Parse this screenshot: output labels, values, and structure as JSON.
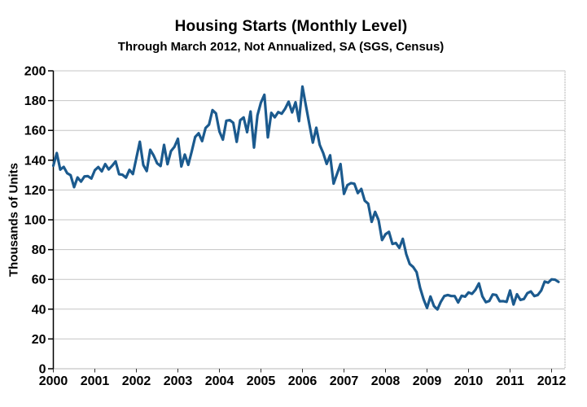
{
  "chart_data": {
    "type": "line",
    "title": "Housing Starts (Monthly Level)",
    "subtitle": "Through March 2012, Not Annualized, SA (SGS, Census)",
    "ylabel": "Thousands of Units",
    "xlabel": "",
    "ylim": [
      0,
      200
    ],
    "ytick_step": 20,
    "yticks": [
      0,
      20,
      40,
      60,
      80,
      100,
      120,
      140,
      160,
      180,
      200
    ],
    "xticks": [
      "2000",
      "2001",
      "2002",
      "2003",
      "2004",
      "2005",
      "2006",
      "2007",
      "2008",
      "2009",
      "2010",
      "2011",
      "2012"
    ],
    "grid": true,
    "legend": "none",
    "line_color": "#1B5A8E",
    "grid_color": "#8c8c8c",
    "axis_color": "#000000",
    "series": [
      {
        "name": "Housing starts, monthly level (thousands of units)",
        "start": "2000-01",
        "end": "2012-03",
        "frequency": "monthly",
        "values": [
          136.3,
          144.8,
          133.7,
          135.5,
          131.3,
          129.9,
          121.9,
          128.4,
          125.6,
          129.1,
          129.3,
          127.7,
          133.3,
          135.4,
          132.5,
          137.4,
          133.8,
          136.3,
          139.2,
          130.6,
          130.2,
          128.3,
          133.5,
          130.7,
          141.5,
          152.4,
          136.8,
          132.7,
          147.0,
          143.1,
          137.9,
          136.1,
          150.3,
          137.3,
          146.1,
          149.0,
          154.4,
          135.8,
          143.8,
          136.9,
          145.9,
          155.6,
          158.1,
          152.8,
          161.6,
          163.9,
          173.6,
          171.4,
          159.3,
          153.8,
          166.5,
          166.9,
          165.1,
          152.3,
          166.8,
          168.7,
          158.8,
          172.7,
          148.5,
          170.2,
          178.7,
          183.9,
          155.3,
          171.8,
          168.8,
          172.3,
          171.2,
          174.6,
          179.3,
          172.1,
          178.9,
          166.2,
          189.4,
          176.6,
          164.1,
          151.8,
          161.8,
          150.2,
          144.8,
          137.5,
          143.3,
          124.3,
          130.8,
          137.4,
          117.4,
          123.3,
          124.6,
          124.2,
          117.9,
          120.7,
          112.8,
          110.8,
          98.6,
          105.3,
          99.8,
          86.4,
          90.3,
          91.9,
          83.8,
          84.4,
          81.1,
          87.2,
          76.9,
          70.3,
          68.3,
          64.8,
          54.3,
          46.7,
          40.8,
          48.5,
          42.1,
          39.8,
          45.0,
          48.8,
          49.5,
          48.8,
          48.8,
          44.5,
          49.0,
          48.4,
          51.2,
          50.3,
          53.0,
          57.3,
          48.6,
          44.7,
          45.5,
          49.9,
          49.5,
          45.3,
          45.4,
          44.9,
          52.5,
          43.1,
          50.0,
          46.2,
          46.8,
          50.7,
          51.9,
          48.8,
          49.5,
          52.5,
          58.5,
          57.8,
          60.0,
          59.8,
          58.3
        ]
      }
    ]
  }
}
